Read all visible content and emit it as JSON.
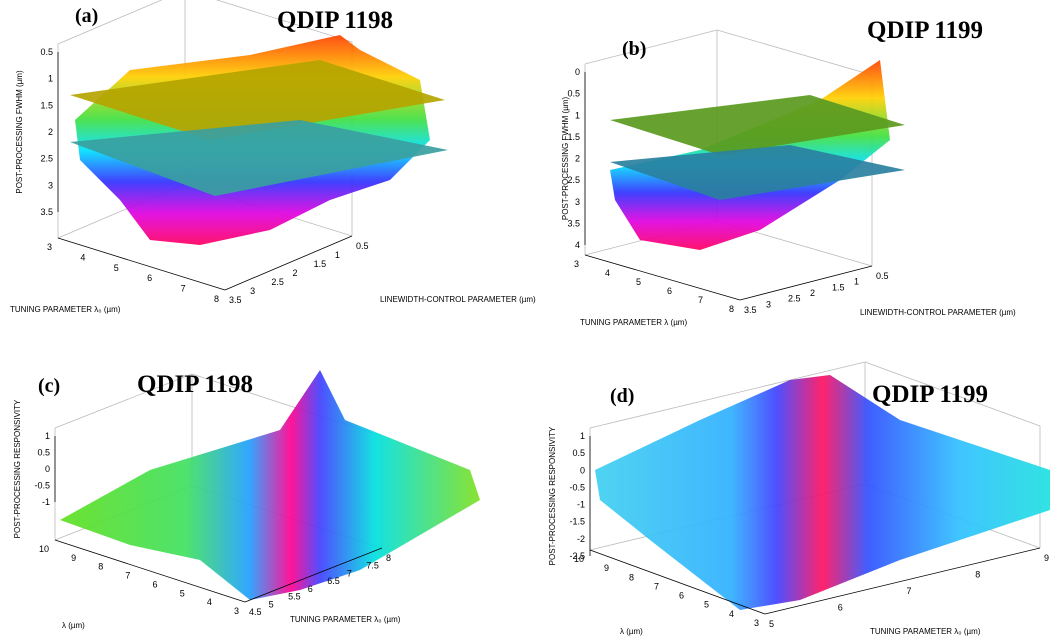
{
  "panels": [
    {
      "label": "(a)",
      "title": "QDIP 1198",
      "z_label": "POST-PROCESSING FWHM (µm)",
      "left_label": "TUNING PARAMETER λ₀ (µm)",
      "right_label": "LINEWIDTH-CONTROL PARAMETER (µm)",
      "z_ticks": [
        "0.5",
        "1",
        "1.5",
        "2",
        "2.5",
        "3",
        "3.5"
      ],
      "left_ticks": [
        "3",
        "4",
        "5",
        "6",
        "7",
        "8"
      ],
      "right_ticks": [
        "3.5",
        "3",
        "2.5",
        "2",
        "1.5",
        "1",
        "0.5"
      ]
    },
    {
      "label": "(b)",
      "title": "QDIP 1199",
      "z_label": "POST-PROCESSING FWHM (µm)",
      "left_label": "TUNING PARAMETER λ (µm)",
      "right_label": "LINEWIDTH-CONTROL PARAMETER (µm)",
      "z_ticks": [
        "0",
        "0.5",
        "1",
        "1.5",
        "2",
        "2.5",
        "3",
        "3.5",
        "4"
      ],
      "left_ticks": [
        "3",
        "4",
        "5",
        "6",
        "7",
        "8"
      ],
      "right_ticks": [
        "3.5",
        "3",
        "2.5",
        "2",
        "1.5",
        "1",
        "0.5"
      ]
    },
    {
      "label": "(c)",
      "title": "QDIP 1198",
      "z_label": "POST-PROCESSING RESPONSIVITY",
      "left_label": "λ (µm)",
      "right_label": "TUNING PARAMETER λ₀ (µm)",
      "z_ticks": [
        "1",
        "0.5",
        "0",
        "-0.5",
        "-1"
      ],
      "left_ticks": [
        "10",
        "9",
        "8",
        "7",
        "6",
        "5",
        "4",
        "3"
      ],
      "right_ticks": [
        "4.5",
        "5",
        "5.5",
        "6",
        "6.5",
        "7",
        "7.5",
        "8"
      ]
    },
    {
      "label": "(d)",
      "title": "QDIP 1199",
      "z_label": "POST-PROCESSING RESPONSIVITY",
      "left_label": "λ (µm)",
      "right_label": "TUNING PARAMETER λ₀ (µm)",
      "z_ticks": [
        "1",
        "0.5",
        "0",
        "-0.5",
        "-1",
        "-1.5",
        "-2",
        "-2.5"
      ],
      "left_ticks": [
        "10",
        "9",
        "8",
        "7",
        "6",
        "5",
        "4",
        "3"
      ],
      "right_ticks": [
        "5",
        "6",
        "7",
        "8",
        "9"
      ]
    }
  ]
}
